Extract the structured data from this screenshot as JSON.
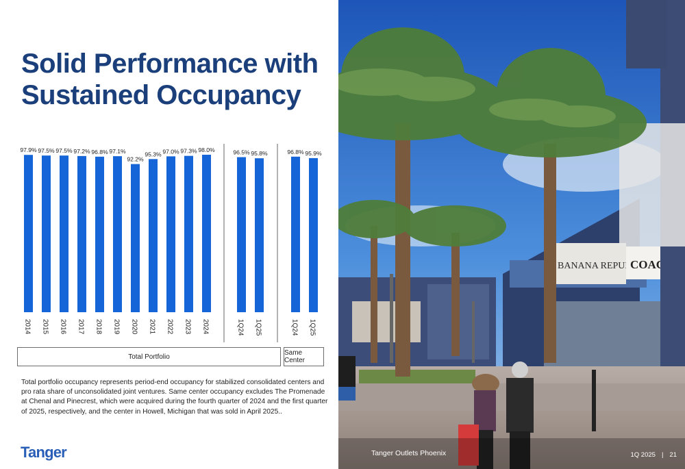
{
  "slide": {
    "title_line1": "Solid Performance with",
    "title_line2": "Sustained Occupancy",
    "footnote": "Total portfolio occupancy represents period-end occupancy for stabilized consolidated centers and pro rata share of unconsolidated joint ventures. Same center occupancy excludes The Promenade at Chenal and Pinecrest, which were acquired during the fourth quarter of 2024 and the first quarter of 2025, respectively, and the center in Howell, Michigan that was sold in April 2025..",
    "logo_text": "Tanger",
    "photo_caption": "Tanger Outlets Phoenix",
    "period": "1Q 2025",
    "page_number": "21"
  },
  "chart_data": {
    "type": "bar",
    "color": "#1565d8",
    "groups": [
      {
        "name": "Total Portfolio",
        "categories": [
          "2014",
          "2015",
          "2016",
          "2017",
          "2018",
          "2019",
          "2020",
          "2021",
          "2022",
          "2023",
          "2024",
          "1Q24",
          "1Q25"
        ],
        "values": [
          97.9,
          97.5,
          97.5,
          97.2,
          96.8,
          97.1,
          92.2,
          95.3,
          97.0,
          97.3,
          98.0,
          96.5,
          95.8
        ]
      },
      {
        "name": "Same Center",
        "categories": [
          "1Q24",
          "1Q25"
        ],
        "values": [
          96.8,
          95.9
        ]
      }
    ],
    "value_format": "percent_1dp"
  }
}
